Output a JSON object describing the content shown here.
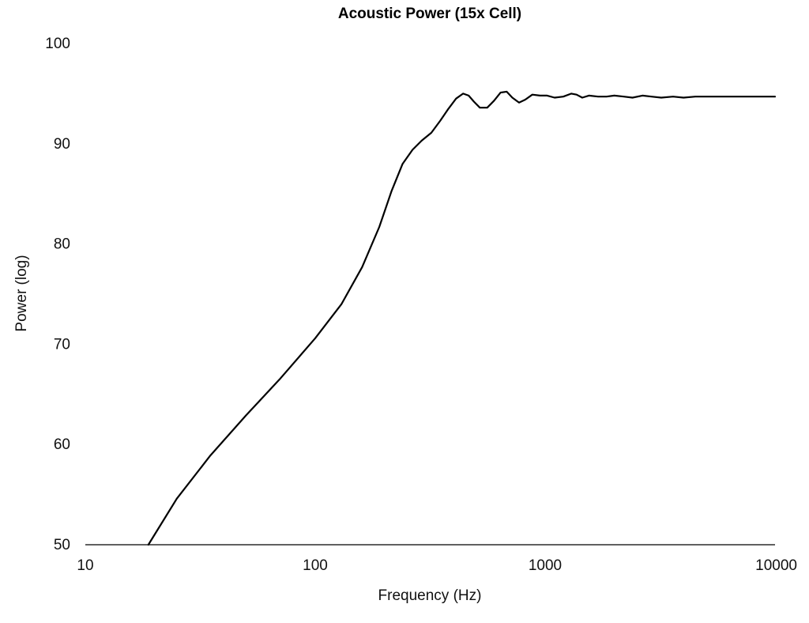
{
  "chart_data": {
    "type": "line",
    "title": "Acoustic Power (15x Cell)",
    "xlabel": "Frequency (Hz)",
    "ylabel": "Power (log)",
    "x_scale": "log",
    "xlim": [
      10,
      10000
    ],
    "ylim": [
      50,
      100
    ],
    "x_ticks": [
      "10",
      "100",
      "1000",
      "10000"
    ],
    "y_ticks": [
      "50",
      "60",
      "70",
      "80",
      "90",
      "100"
    ],
    "grid": false,
    "legend": "none",
    "line_color": "#000000",
    "series": [
      {
        "x": [
          18.8,
          25,
          35,
          50,
          70,
          100,
          130,
          160,
          190,
          215,
          240,
          265,
          290,
          320,
          350,
          380,
          410,
          440,
          465,
          490,
          520,
          560,
          600,
          640,
          680,
          720,
          770,
          820,
          880,
          950,
          1020,
          1100,
          1200,
          1300,
          1370,
          1450,
          1550,
          1700,
          1850,
          2000,
          2200,
          2400,
          2650,
          2900,
          3200,
          3600,
          4000,
          4500,
          5000,
          6000,
          7000,
          8000,
          9000,
          10000
        ],
        "y": [
          50.0,
          54.6,
          58.9,
          62.9,
          66.5,
          70.6,
          74.0,
          77.7,
          81.7,
          85.3,
          88.0,
          89.4,
          90.3,
          91.1,
          92.3,
          93.5,
          94.5,
          95.0,
          94.8,
          94.2,
          93.6,
          93.6,
          94.3,
          95.1,
          95.2,
          94.6,
          94.1,
          94.4,
          94.9,
          94.8,
          94.8,
          94.6,
          94.7,
          95.0,
          94.9,
          94.6,
          94.8,
          94.7,
          94.7,
          94.8,
          94.7,
          94.6,
          94.8,
          94.7,
          94.6,
          94.7,
          94.6,
          94.7,
          94.7,
          94.7,
          94.7,
          94.7,
          94.7,
          94.7
        ]
      }
    ]
  }
}
